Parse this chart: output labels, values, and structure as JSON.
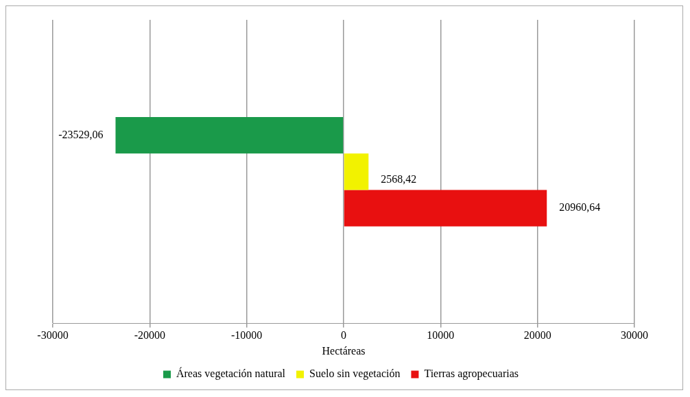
{
  "chart_data": {
    "type": "bar",
    "orientation": "horizontal",
    "categories": [
      null
    ],
    "series": [
      {
        "name": "Áreas vegetación natural",
        "color": "#1a9a4a",
        "values": [
          -23529.06
        ],
        "value_labels": [
          "-23529,06"
        ]
      },
      {
        "name": "Suelo sin vegetación",
        "color": "#f2f200",
        "values": [
          2568.42
        ],
        "value_labels": [
          "2568,42"
        ]
      },
      {
        "name": "Tierras agropecuarias",
        "color": "#e81010",
        "values": [
          20960.64
        ],
        "value_labels": [
          "20960,64"
        ]
      }
    ],
    "xlabel": "Hectáreas",
    "xlim": [
      -30000,
      30000
    ],
    "xticks": [
      -30000,
      -20000,
      -10000,
      0,
      10000,
      20000,
      30000
    ],
    "grid": "x",
    "legend": "bottom",
    "tick_labels": "x"
  }
}
